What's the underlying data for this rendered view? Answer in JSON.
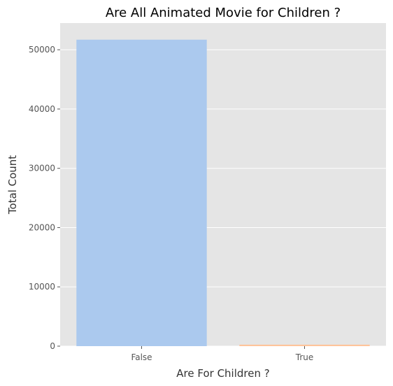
{
  "chart_data": {
    "type": "bar",
    "title": "Are All Animated Movie for Children ?",
    "xlabel": "Are For Children ?",
    "ylabel": "Total Count",
    "categories": [
      "False",
      "True"
    ],
    "values": [
      51700,
      250
    ],
    "ylim": [
      0,
      54500
    ],
    "yticks": [
      0,
      10000,
      20000,
      30000,
      40000,
      50000
    ],
    "colors": [
      "#abc9ee",
      "#ffc49b"
    ],
    "background": "#e5e5e5",
    "grid": true,
    "grid_color": "#ffffff",
    "tick_label_color": "#555555",
    "text_color": "#333333"
  }
}
